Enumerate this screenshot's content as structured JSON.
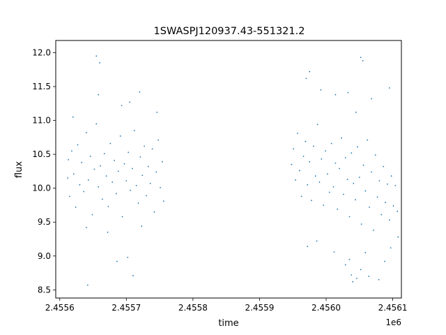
{
  "chart_data": {
    "type": "scatter",
    "title": "1SWASPJ120937.43-551321.2",
    "xlabel": "time",
    "ylabel": "flux",
    "x_offset_label": "1e6",
    "xlim": [
      2455594,
      2456113
    ],
    "ylim": [
      8.38,
      12.18
    ],
    "x_ticks": [
      {
        "value": 2455600,
        "label": "2.4556"
      },
      {
        "value": 2455700,
        "label": "2.4557"
      },
      {
        "value": 2455800,
        "label": "2.4558"
      },
      {
        "value": 2455900,
        "label": "2.4559"
      },
      {
        "value": 2456000,
        "label": "2.4560"
      },
      {
        "value": 2456100,
        "label": "2.4561"
      }
    ],
    "y_ticks": [
      {
        "value": 8.5,
        "label": "8.5"
      },
      {
        "value": 9.0,
        "label": "9.0"
      },
      {
        "value": 9.5,
        "label": "9.5"
      },
      {
        "value": 10.0,
        "label": "10.0"
      },
      {
        "value": 10.5,
        "label": "10.5"
      },
      {
        "value": 11.0,
        "label": "11.0"
      },
      {
        "value": 11.5,
        "label": "11.5"
      },
      {
        "value": 12.0,
        "label": "12.0"
      }
    ],
    "grid": false,
    "marker_color": "#1f77b4",
    "series": [
      {
        "values": [
          [
            2455612,
            10.15
          ],
          [
            2455613,
            10.42
          ],
          [
            2455615,
            9.88
          ],
          [
            2455618,
            10.55
          ],
          [
            2455621,
            10.21
          ],
          [
            2455624,
            9.72
          ],
          [
            2455627,
            10.64
          ],
          [
            2455630,
            10.05
          ],
          [
            2455633,
            10.38
          ],
          [
            2455636,
            9.95
          ],
          [
            2455640,
            10.82
          ],
          [
            2455643,
            10.12
          ],
          [
            2455646,
            10.47
          ],
          [
            2455649,
            9.61
          ],
          [
            2455652,
            10.28
          ],
          [
            2455655,
            10.95
          ],
          [
            2455658,
            10.02
          ],
          [
            2455661,
            10.33
          ],
          [
            2455664,
            9.84
          ],
          [
            2455667,
            10.51
          ],
          [
            2455670,
            10.18
          ],
          [
            2455673,
            9.73
          ],
          [
            2455676,
            10.66
          ],
          [
            2455679,
            10.09
          ],
          [
            2455682,
            10.41
          ],
          [
            2455685,
            9.92
          ],
          [
            2455688,
            10.25
          ],
          [
            2455691,
            10.77
          ],
          [
            2455694,
            9.58
          ],
          [
            2455697,
            10.36
          ],
          [
            2455700,
            10.11
          ],
          [
            2455703,
            10.53
          ],
          [
            2455706,
            9.97
          ],
          [
            2455709,
            10.29
          ],
          [
            2455712,
            10.85
          ],
          [
            2455715,
            10.04
          ],
          [
            2455718,
            9.78
          ],
          [
            2455721,
            10.46
          ],
          [
            2455724,
            10.19
          ],
          [
            2455727,
            10.62
          ],
          [
            2455730,
            9.89
          ],
          [
            2455733,
            10.32
          ],
          [
            2455736,
            10.07
          ],
          [
            2455739,
            10.58
          ],
          [
            2455742,
            9.65
          ],
          [
            2455745,
            10.24
          ],
          [
            2455748,
            10.71
          ],
          [
            2455751,
            10.01
          ],
          [
            2455754,
            10.39
          ],
          [
            2455756,
            9.81
          ],
          [
            2455620,
            11.05
          ],
          [
            2455640,
            9.42
          ],
          [
            2455658,
            11.38
          ],
          [
            2455672,
            9.35
          ],
          [
            2455693,
            11.22
          ],
          [
            2455705,
            11.27
          ],
          [
            2455723,
            9.44
          ],
          [
            2455746,
            11.12
          ],
          [
            2455655,
            11.95
          ],
          [
            2455660,
            11.85
          ],
          [
            2455686,
            8.92
          ],
          [
            2455702,
            8.98
          ],
          [
            2455720,
            11.42
          ],
          [
            2455710,
            8.71
          ],
          [
            2455642,
            8.57
          ],
          [
            2455948,
            10.35
          ],
          [
            2455951,
            10.58
          ],
          [
            2455954,
            10.12
          ],
          [
            2455957,
            10.81
          ],
          [
            2455960,
            10.26
          ],
          [
            2455963,
            9.88
          ],
          [
            2455966,
            10.47
          ],
          [
            2455969,
            10.69
          ],
          [
            2455972,
            10.05
          ],
          [
            2455975,
            10.39
          ],
          [
            2455978,
            9.82
          ],
          [
            2455981,
            10.62
          ],
          [
            2455984,
            10.18
          ],
          [
            2455987,
            10.94
          ],
          [
            2455990,
            10.09
          ],
          [
            2455993,
            10.43
          ],
          [
            2455996,
            9.75
          ],
          [
            2455999,
            10.55
          ],
          [
            2456002,
            10.21
          ],
          [
            2456005,
            9.94
          ],
          [
            2456008,
            10.66
          ],
          [
            2456011,
            10.02
          ],
          [
            2456014,
            10.37
          ],
          [
            2456017,
            9.69
          ],
          [
            2456020,
            10.29
          ],
          [
            2456023,
            10.74
          ],
          [
            2456026,
            9.91
          ],
          [
            2456029,
            10.45
          ],
          [
            2456032,
            10.13
          ],
          [
            2456035,
            9.58
          ],
          [
            2456038,
            10.52
          ],
          [
            2456041,
            10.07
          ],
          [
            2456044,
            9.83
          ],
          [
            2456047,
            10.61
          ],
          [
            2456050,
            10.16
          ],
          [
            2456053,
            9.47
          ],
          [
            2456056,
            10.34
          ],
          [
            2456059,
            9.96
          ],
          [
            2456062,
            10.71
          ],
          [
            2456065,
            9.72
          ],
          [
            2456068,
            10.24
          ],
          [
            2456071,
            9.38
          ],
          [
            2456074,
            10.49
          ],
          [
            2456077,
            9.87
          ],
          [
            2456080,
            10.11
          ],
          [
            2456083,
            9.61
          ],
          [
            2456086,
            10.32
          ],
          [
            2456089,
            9.79
          ],
          [
            2456092,
            10.06
          ],
          [
            2456095,
            9.53
          ],
          [
            2456098,
            10.18
          ],
          [
            2456101,
            9.74
          ],
          [
            2456104,
            10.04
          ],
          [
            2456107,
            9.66
          ],
          [
            2455970,
            11.62
          ],
          [
            2455975,
            11.72
          ],
          [
            2455992,
            11.45
          ],
          [
            2456014,
            11.38
          ],
          [
            2456033,
            11.41
          ],
          [
            2456045,
            11.12
          ],
          [
            2456052,
            11.93
          ],
          [
            2456055,
            11.88
          ],
          [
            2456068,
            11.32
          ],
          [
            2456095,
            11.48
          ],
          [
            2455972,
            9.14
          ],
          [
            2455986,
            9.22
          ],
          [
            2456012,
            9.06
          ],
          [
            2456035,
            8.95
          ],
          [
            2456038,
            8.72
          ],
          [
            2456040,
            8.62
          ],
          [
            2456046,
            8.67
          ],
          [
            2456052,
            8.8
          ],
          [
            2456059,
            9.05
          ],
          [
            2456064,
            8.7
          ],
          [
            2456079,
            8.65
          ],
          [
            2456088,
            8.92
          ],
          [
            2456097,
            9.12
          ],
          [
            2456108,
            9.28
          ],
          [
            2456029,
            8.87
          ]
        ]
      }
    ]
  }
}
